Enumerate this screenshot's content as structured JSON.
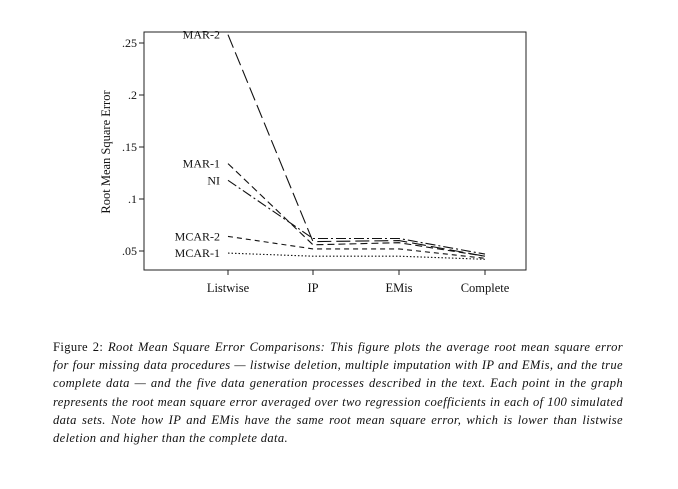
{
  "chart_data": {
    "type": "line",
    "ylabel": "Root Mean Square Error",
    "xlabel": "",
    "categories": [
      "Listwise",
      "IP",
      "EMis",
      "Complete"
    ],
    "yticks": [
      ".05",
      ".1",
      ".15",
      ".2",
      ".25"
    ],
    "ytick_values": [
      0.05,
      0.1,
      0.15,
      0.2,
      0.25
    ],
    "ylim": [
      0.038,
      0.262
    ],
    "grid": false,
    "legend": "none",
    "series": [
      {
        "name": "MAR-2",
        "values": [
          0.258,
          0.059,
          0.06,
          0.045
        ],
        "dash": "14,5"
      },
      {
        "name": "MAR-1",
        "values": [
          0.134,
          0.056,
          0.058,
          0.045
        ],
        "dash": "7,4"
      },
      {
        "name": "NI",
        "values": [
          0.118,
          0.062,
          0.062,
          0.047
        ],
        "dash": "10,3,2,3"
      },
      {
        "name": "MCAR-2",
        "values": [
          0.064,
          0.052,
          0.052,
          0.043
        ],
        "dash": "5,4"
      },
      {
        "name": "MCAR-1",
        "values": [
          0.048,
          0.045,
          0.045,
          0.042
        ],
        "dash": "1.5,2"
      }
    ]
  },
  "caption": {
    "label": "Figure 2: ",
    "text": "Root Mean Square Error Comparisons: This figure plots the average root mean square error for four missing data procedures — listwise deletion, multiple imputation with IP and EMis, and the true complete data — and the five data generation processes described in the text. Each point in the graph represents the root mean square error averaged over two regression coefficients in each of 100 simulated data sets. Note how IP and EMis have the same root mean square error, which is lower than listwise deletion and higher than the complete data."
  }
}
